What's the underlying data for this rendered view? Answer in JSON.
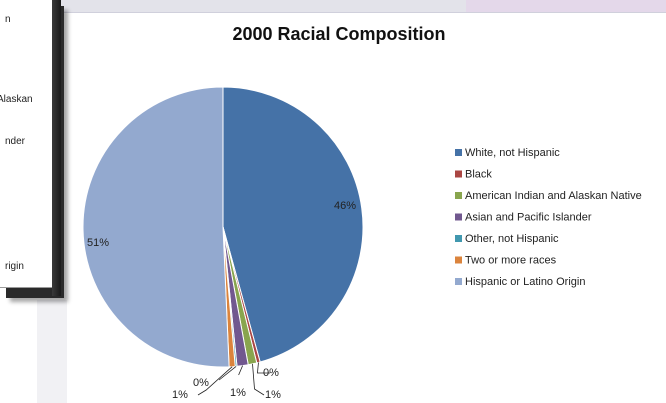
{
  "overlap_fragments": [
    "n",
    "Alaskan",
    "nder",
    "rigin"
  ],
  "chart_data": {
    "type": "pie",
    "title": "2000 Racial Composition",
    "legend_position": "right",
    "categories": [
      "White, not Hispanic",
      "Black",
      "American Indian and Alaskan Native",
      "Asian and Pacific Islander",
      "Other, not Hispanic",
      "Two or more races",
      "Hispanic or Latino Origin"
    ],
    "values": [
      46,
      0.4,
      1,
      1.3,
      0.2,
      0.7,
      51
    ],
    "data_labels": [
      "46%",
      "0%",
      "1%",
      "1%",
      "0%",
      "1%",
      "51%"
    ],
    "colors": [
      "#4572a7",
      "#aa4643",
      "#89a54e",
      "#71588f",
      "#4198af",
      "#db843d",
      "#93a9cf"
    ]
  }
}
